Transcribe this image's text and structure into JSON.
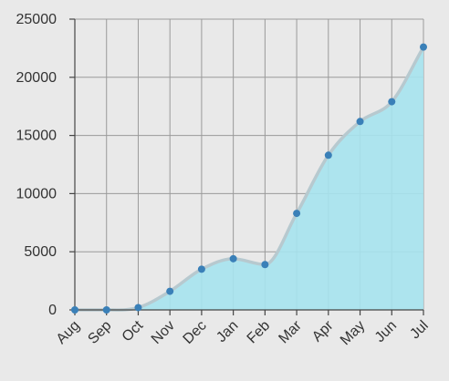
{
  "colors": {
    "background": "#e9e9e9",
    "area_fill": "#a6e3ee",
    "area_line": "#b7c9cf",
    "point": "#3a80b8",
    "grid": "#9a9a9a",
    "axis": "#444444",
    "text": "#333333"
  },
  "chart_data": {
    "type": "area",
    "title": "",
    "xlabel": "",
    "ylabel": "",
    "categories": [
      "Aug",
      "Sep",
      "Oct",
      "Nov",
      "Dec",
      "Jan",
      "Feb",
      "Mar",
      "Apr",
      "May",
      "Jun",
      "Jul"
    ],
    "values": [
      0,
      0,
      200,
      1600,
      3500,
      4400,
      3900,
      8300,
      13300,
      16200,
      17900,
      22600
    ],
    "ylim": [
      0,
      25000
    ],
    "yticks": [
      "0",
      "5000",
      "10000",
      "15000",
      "20000",
      "25000"
    ],
    "ytick_values": [
      0,
      5000,
      10000,
      15000,
      20000,
      25000
    ],
    "grid": true,
    "legend": "none",
    "curve": "smooth",
    "xtick_rotation_deg": -45
  }
}
